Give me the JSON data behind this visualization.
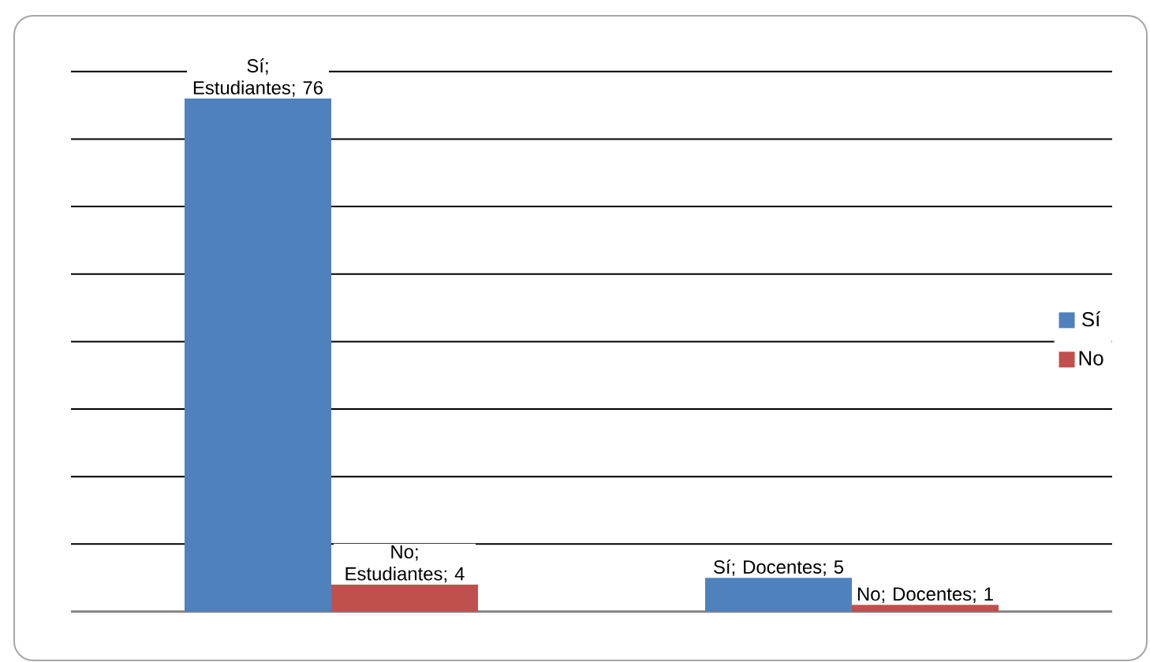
{
  "chart_data": {
    "type": "bar",
    "categories": [
      null,
      null
    ],
    "series": [
      {
        "name": "Sí",
        "color": "#4f81bd",
        "values": [
          76,
          5
        ],
        "value_labels": [
          "Sí; Estudiantes; 76",
          "Sí; Docentes; 5"
        ]
      },
      {
        "name": "No",
        "color": "#c0504d",
        "values": [
          4,
          1
        ],
        "value_labels": [
          "No; Estudiantes; 4",
          "No; Docentes; 1"
        ]
      }
    ],
    "grid": "y",
    "legend": "right"
  }
}
